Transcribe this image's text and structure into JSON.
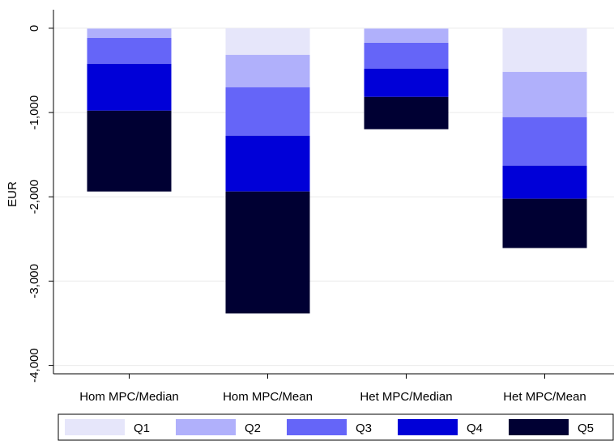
{
  "chart_data": {
    "type": "stacked_bar",
    "ylabel": "EUR",
    "categories": [
      "Hom MPC/Median",
      "Hom MPC/Mean",
      "Het MPC/Median",
      "Het MPC/Mean"
    ],
    "series": [
      {
        "name": "Q1",
        "color": "#e6e6fa",
        "values": [
          -5,
          -316,
          -5,
          -518
        ]
      },
      {
        "name": "Q2",
        "color": "#b0b0fb",
        "values": [
          -110,
          -384,
          -168,
          -537
        ]
      },
      {
        "name": "Q3",
        "color": "#6565f8",
        "values": [
          -307,
          -575,
          -306,
          -575
        ]
      },
      {
        "name": "Q4",
        "color": "#0000d8",
        "values": [
          -556,
          -662,
          -336,
          -393
        ]
      },
      {
        "name": "Q5",
        "color": "#000033",
        "values": [
          -959,
          -1447,
          -383,
          -585
        ]
      }
    ],
    "ylim": [
      -4100,
      220
    ],
    "yticks": [
      0,
      {
        "value": -1000,
        "label": "-1,000"
      },
      {
        "value": -2000,
        "label": "-2,000"
      },
      {
        "value": -3000,
        "label": "-3,000"
      },
      {
        "value": -4000,
        "label": "-4,000"
      }
    ],
    "grid": true,
    "legend": "bottom"
  }
}
